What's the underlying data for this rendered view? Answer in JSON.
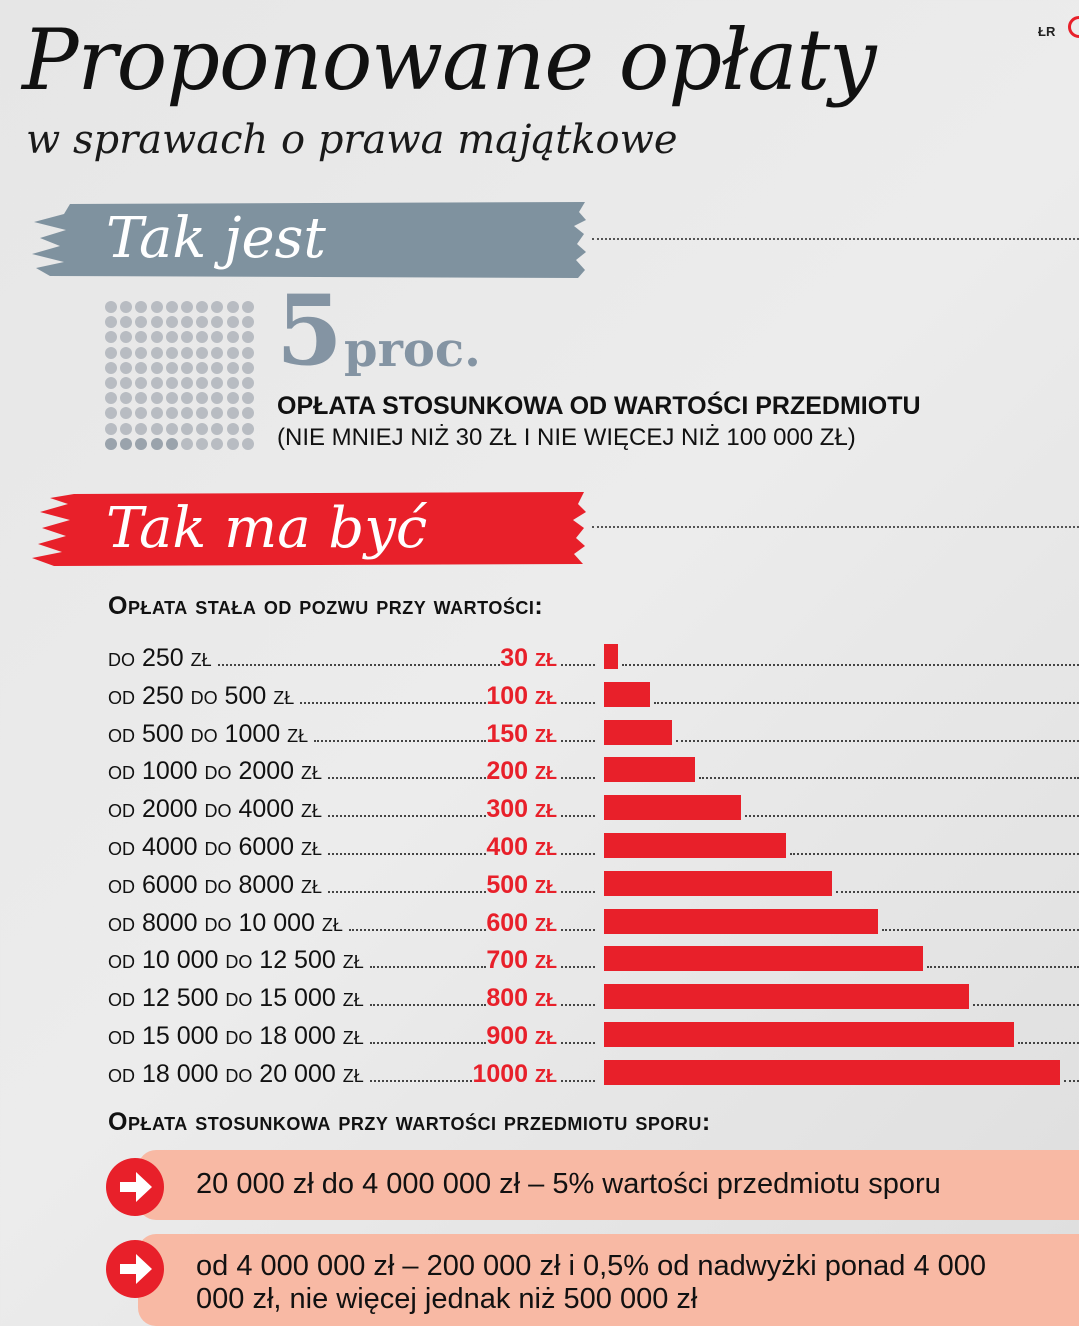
{
  "header": {
    "title": "Proponowane opłaty",
    "subtitle": "w sprawach o prawa majątkowe",
    "brand": "ŁR"
  },
  "current": {
    "banner_label": "Tak jest",
    "rate_number": "5",
    "rate_unit": "proc.",
    "description": "OPŁATA STOSUNKOWA OD WARTOŚCI PRZEDMIOTU",
    "note": "(NIE MNIEJ NIŻ 30 ZŁ I NIE WIĘCEJ NIŻ 100 000 ZŁ)",
    "dot_grid_total": 100,
    "dot_grid_highlighted": 5
  },
  "proposed": {
    "banner_label": "Tak ma być",
    "fixed_heading": "Opłata stała od pozwu przy wartości:",
    "proportional_heading": "Opłata stosunkowa przy wartości przedmiotu sporu:",
    "proportional_items": [
      "20 000 zł do 4 000 000 zł – 5% wartości przedmiotu sporu",
      "od 4 000 000 zł – 200 000 zł i 0,5% od nadwyżki ponad 4 000 000 zł, nie więcej jednak niż 500 000 zł"
    ]
  },
  "colors": {
    "accent_red": "#e8202a",
    "banner_grey": "#7f929f",
    "callout_salmon": "#f8b9a4",
    "percent_grey": "#8494a3"
  },
  "chart_data": {
    "type": "bar",
    "orientation": "horizontal",
    "categories": [
      "do 250 zł",
      "od 250 do 500 zł",
      "od 500 do 1000 zł",
      "od 1000 do 2000 zł",
      "od 2000 do 4000 zł",
      "od 4000 do 6000 zł",
      "od 6000 do 8000 zł",
      "od 8000 do 10 000 zł",
      "od 10 000 do 12 500 zł",
      "od 12 500 do 15 000 zł",
      "od 15 000 do 18 000 zł",
      "od 18 000 do 20 000 zł"
    ],
    "values": [
      30,
      100,
      150,
      200,
      300,
      400,
      500,
      600,
      700,
      800,
      900,
      1000
    ],
    "value_labels": [
      "30 zł",
      "100 zł",
      "150 zł",
      "200 zł",
      "300 zł",
      "400 zł",
      "500 zł",
      "600 zł",
      "700 zł",
      "800 zł",
      "900 zł",
      "1000 zł"
    ],
    "title": "Opłata stała od pozwu przy wartości:",
    "xlim": [
      0,
      1000
    ],
    "grid": false,
    "legend": "none",
    "bar_color": "#e8202a"
  }
}
